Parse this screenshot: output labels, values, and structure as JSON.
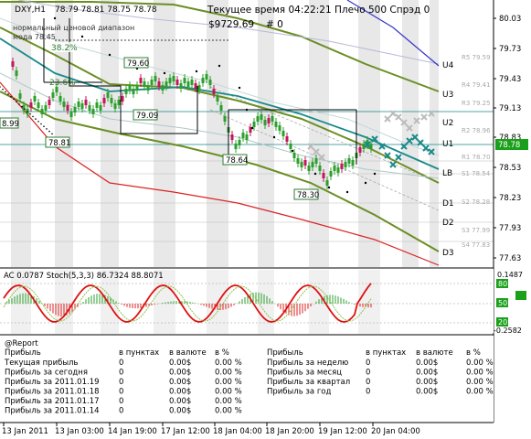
{
  "header": {
    "symbol": "DXY,H1",
    "ohlc": "78.79 78.81 78.75 78.78",
    "timer_line": "Текущее время 04:22:21 Плечо 500 Спрэд 0",
    "balance": "$9729.69",
    "mark": "# 0",
    "channel_title": "нормальный ценовой диапазон",
    "channel_sub": "мода 78.45"
  },
  "chart": {
    "price_axis": [
      "80.03",
      "79.73",
      "79.43",
      "79.13",
      "78.83",
      "78.53",
      "78.23",
      "77.93",
      "77.63"
    ],
    "current_price": "78.78",
    "level_labels": [
      "U4",
      "U3",
      "U2",
      "U1",
      "LB",
      "D1",
      "D2",
      "D3"
    ],
    "level_values": [
      "R5 79.59",
      "R4 79.41",
      "R3 79.25",
      "R2 78.96",
      "R1 78.70",
      "S1 78.54",
      "S2 78.28",
      "S3 77.99",
      "S4 77.83"
    ],
    "price_tags": [
      "79.60",
      "79.09",
      "78.81",
      "78.64",
      "78.30",
      "8.99"
    ],
    "fib_labels": [
      "38.2%",
      "23.6%"
    ],
    "colors": {
      "trend": "#6b8e23",
      "teal": "#1a8a8a",
      "red": "#dd2222",
      "blue": "#3333cc",
      "candle": "#2ca02c",
      "bear": "#c2185b",
      "shade": "#e8e8e8"
    }
  },
  "indicator": {
    "title": "AC 0.0787 Stoch(5,3,3) 86.7324 88.8071",
    "axis": [
      "0.1487",
      "80",
      "50",
      "20",
      "-0.2582"
    ]
  },
  "report": {
    "title": "@Report",
    "left_header": [
      "Прибыль",
      "в пунктах",
      "в валюте",
      "в %"
    ],
    "left_rows": [
      [
        "Текущая прибыль",
        "0",
        "0.00$",
        "0.00 %"
      ],
      [
        "Прибыль за сегодня",
        "0",
        "0.00$",
        "0.00 %"
      ],
      [
        "Прибыль за 2011.01.19",
        "0",
        "0.00$",
        "0.00 %"
      ],
      [
        "Прибыль за 2011.01.18",
        "0",
        "0.00$",
        "0.00 %"
      ],
      [
        "Прибыль за 2011.01.17",
        "0",
        "0.00$",
        "0.00 %"
      ],
      [
        "Прибыль за 2011.01.14",
        "0",
        "0.00$",
        "0.00 %"
      ]
    ],
    "right_header": [
      "Прибыль",
      "в пунктах",
      "в валюте",
      "в %"
    ],
    "right_rows": [
      [
        "Прибыль за неделю",
        "0",
        "0.00$",
        "0.00 %"
      ],
      [
        "Прибыль за месяц",
        "0",
        "0.00$",
        "0.00 %"
      ],
      [
        "Прибыль за квартал",
        "0",
        "0.00$",
        "0.00 %"
      ],
      [
        "Прибыль за год",
        "0",
        "0.00$",
        "0.00 %"
      ]
    ]
  },
  "time_axis": [
    "13 Jan 2011",
    "13 Jan 03:00",
    "14 Jan 19:00",
    "17 Jan 12:00",
    "18 Jan 04:00",
    "18 Jan 20:00",
    "19 Jan 12:00",
    "20 Jan 04:00"
  ]
}
